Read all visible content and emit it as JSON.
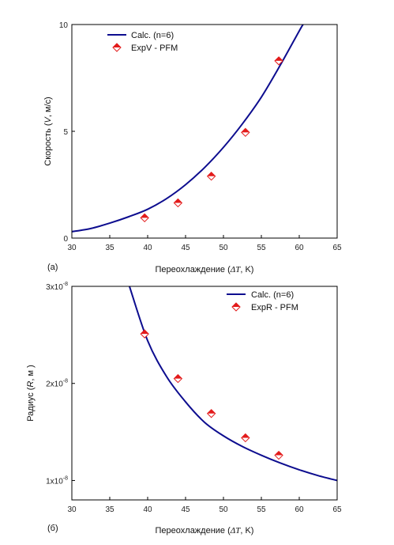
{
  "chart_data": [
    {
      "type": "line",
      "panel_label": "(a)",
      "xlabel": {
        "pre": "Переохлаждение (",
        "var": "ΔT",
        "post": ", K)"
      },
      "ylabel": {
        "pre": "Скорость (",
        "var": "V",
        "post": ", м/с)"
      },
      "xlim": [
        30,
        65
      ],
      "ylim": [
        0,
        10
      ],
      "xticks": [
        "30",
        "35",
        "40",
        "45",
        "50",
        "55",
        "60",
        "65"
      ],
      "yticks": [
        "0",
        "5",
        "10"
      ],
      "legend_position": "top-left",
      "series": [
        {
          "name": "Calc. (n=6)",
          "kind": "line",
          "color": "#0d0d8f",
          "x": [
            30,
            32.5,
            35,
            37.5,
            40,
            42.5,
            45,
            47.5,
            50,
            52.5,
            55,
            57.5,
            60,
            60.5
          ],
          "y": [
            0.3,
            0.45,
            0.7,
            1.0,
            1.35,
            1.85,
            2.5,
            3.3,
            4.25,
            5.35,
            6.6,
            8.1,
            9.7,
            10.0
          ]
        },
        {
          "name": "ExpV - PFM",
          "kind": "scatter",
          "color": "#e31b1b",
          "x": [
            39.6,
            44.0,
            48.4,
            52.9,
            57.3
          ],
          "y": [
            0.95,
            1.65,
            2.9,
            4.95,
            8.3
          ]
        }
      ]
    },
    {
      "type": "line",
      "panel_label": "(б)",
      "xlabel": {
        "pre": "Переохлаждение (",
        "var": "ΔT",
        "post": ", K)"
      },
      "ylabel": {
        "pre": "Радиус  (",
        "var": "R",
        "post": ", м )"
      },
      "xlim": [
        30,
        65
      ],
      "ylim": [
        8e-09,
        3e-08
      ],
      "xticks": [
        "30",
        "35",
        "40",
        "45",
        "50",
        "55",
        "60",
        "65"
      ],
      "yticks": [
        {
          "value": 1e-08,
          "mant": "1x10",
          "exp": "-8"
        },
        {
          "value": 2e-08,
          "mant": "2x10",
          "exp": "-8"
        },
        {
          "value": 3e-08,
          "mant": "3x10",
          "exp": "-8"
        }
      ],
      "legend_position": "top-right",
      "series": [
        {
          "name": "Calc. (n=6)",
          "kind": "line",
          "color": "#0d0d8f",
          "x": [
            37.6,
            40,
            42.5,
            45,
            47.5,
            50,
            52.5,
            55,
            57.5,
            60,
            62.5,
            65
          ],
          "y": [
            3e-08,
            2.44e-08,
            2.07e-08,
            1.81e-08,
            1.6e-08,
            1.46e-08,
            1.35e-08,
            1.26e-08,
            1.18e-08,
            1.11e-08,
            1.05e-08,
            1e-08
          ]
        },
        {
          "name": "ExpR - PFM",
          "kind": "scatter",
          "color": "#e31b1b",
          "x": [
            39.6,
            44.0,
            48.4,
            52.9,
            57.3
          ],
          "y": [
            2.51e-08,
            2.05e-08,
            1.69e-08,
            1.44e-08,
            1.26e-08
          ]
        }
      ]
    }
  ]
}
